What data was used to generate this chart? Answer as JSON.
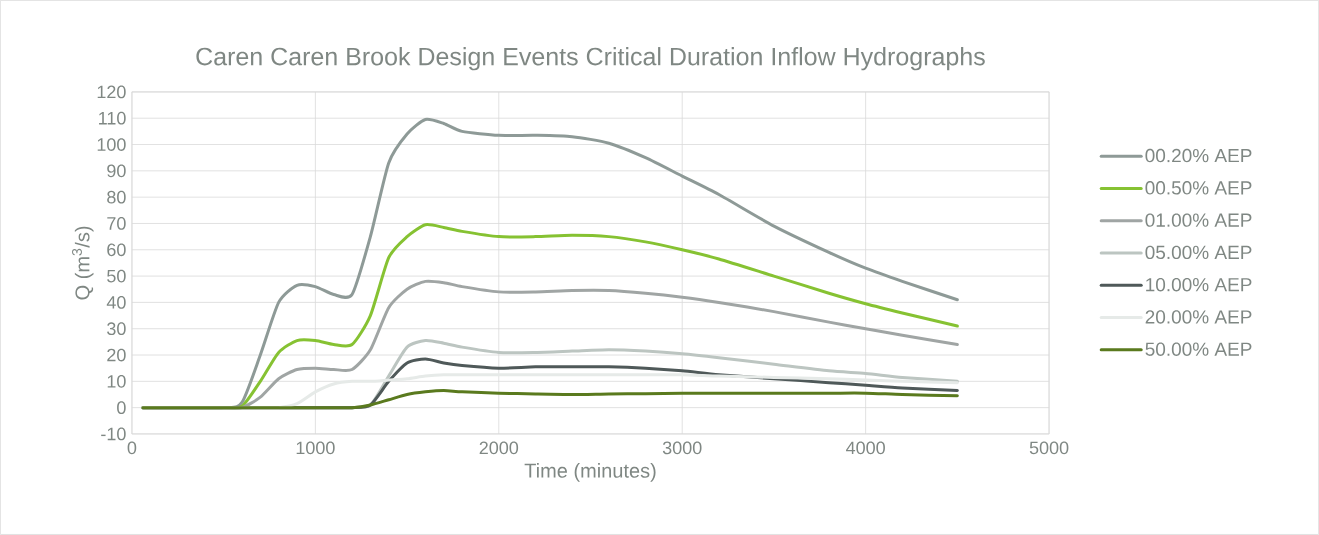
{
  "chart_data": {
    "type": "line",
    "title": "Caren Caren Brook Design Events Critical Duration Inflow Hydrographs",
    "xlabel": "Time (minutes)",
    "ylabel": "Q (m$^{3}$/s)",
    "x": [
      60,
      500,
      600,
      700,
      800,
      900,
      1000,
      1100,
      1200,
      1300,
      1400,
      1500,
      1600,
      1700,
      1800,
      2000,
      2200,
      2400,
      2600,
      2800,
      3000,
      3200,
      3500,
      3800,
      4000,
      4200,
      4500
    ],
    "series": [
      {
        "name": "00.20% AEP",
        "color": "#8e9a97",
        "values": [
          0,
          0,
          2,
          20,
          40,
          46.5,
          46,
          43,
          43,
          65,
          93,
          104,
          109.5,
          108,
          105,
          103.5,
          103.5,
          103,
          100.5,
          95,
          88,
          81,
          69,
          59,
          53,
          48,
          41
        ]
      },
      {
        "name": "00.50% AEP",
        "color": "#86c232",
        "values": [
          0,
          0,
          0.5,
          10,
          21,
          25.5,
          25.5,
          24,
          24,
          35,
          57,
          65,
          69.5,
          68.5,
          67,
          65,
          65,
          65.5,
          65,
          63,
          60,
          56.5,
          50,
          43.5,
          39.5,
          36,
          31
        ]
      },
      {
        "name": "01.00% AEP",
        "color": "#a0a5a4",
        "values": [
          0,
          0,
          0,
          4,
          11,
          14.5,
          15,
          14.5,
          14.5,
          22,
          38,
          45,
          48,
          47.5,
          46,
          44,
          44,
          44.5,
          44.5,
          43.5,
          42,
          40,
          36.5,
          32.5,
          30,
          27.5,
          24
        ]
      },
      {
        "name": "05.00% AEP",
        "color": "#bcc5c1",
        "values": [
          0,
          0,
          0,
          0,
          0,
          0,
          0,
          0,
          0,
          1,
          12,
          23,
          25.5,
          24.5,
          23,
          21,
          21,
          21.5,
          22,
          21.5,
          20.5,
          19,
          16.5,
          14,
          13,
          11.5,
          10
        ]
      },
      {
        "name": "10.00% AEP",
        "color": "#4f5959",
        "values": [
          0,
          0,
          0,
          0,
          0,
          0,
          0,
          0,
          0,
          1,
          10,
          17,
          18.5,
          17,
          16,
          15,
          15.5,
          15.5,
          15.5,
          15,
          14,
          12.5,
          11,
          9.5,
          8.5,
          7.5,
          6.5
        ]
      },
      {
        "name": "20.00% AEP",
        "color": "#e6eae8",
        "values": [
          0,
          0,
          0,
          0,
          0,
          1.5,
          6,
          9,
          10,
          10,
          10.5,
          11,
          12,
          12.5,
          12.5,
          12.5,
          12.5,
          12.5,
          12.5,
          12.5,
          12.5,
          12,
          11.5,
          11,
          10.5,
          10,
          9.5
        ]
      },
      {
        "name": "50.00% AEP",
        "color": "#5a7a1e",
        "values": [
          0,
          0,
          0,
          0,
          0,
          0,
          0,
          0,
          0,
          1,
          3,
          5,
          6,
          6.5,
          6,
          5.5,
          5.2,
          5,
          5.2,
          5.3,
          5.5,
          5.5,
          5.5,
          5.5,
          5.5,
          5,
          4.5
        ]
      }
    ],
    "xlim": [
      0,
      5000
    ],
    "xticks": [
      0,
      1000,
      2000,
      3000,
      4000,
      5000
    ],
    "ylim": [
      -10,
      120
    ],
    "yticks": [
      -10,
      0,
      10,
      20,
      30,
      40,
      50,
      60,
      70,
      80,
      90,
      100,
      110,
      120
    ],
    "grid": true,
    "legend": "right",
    "marker": "none",
    "line_style": "solid"
  }
}
